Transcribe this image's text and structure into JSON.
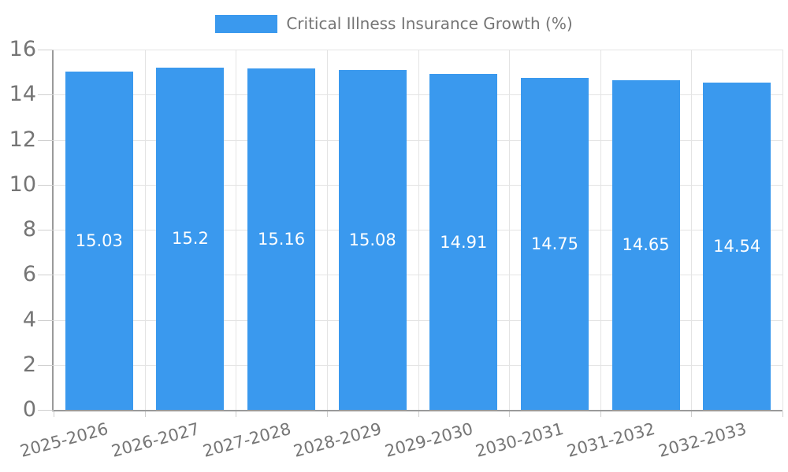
{
  "chart_data": {
    "type": "bar",
    "title": "Critical Illness Insurance Growth (%)",
    "legend": {
      "label": "Critical Illness Insurance Growth (%)",
      "position": "top"
    },
    "categories": [
      "2025-2026",
      "2026-2027",
      "2027-2028",
      "2028-2029",
      "2029-2030",
      "2030-2031",
      "2031-2032",
      "2032-2033"
    ],
    "values": [
      15.03,
      15.2,
      15.16,
      15.08,
      14.91,
      14.75,
      14.65,
      14.54
    ],
    "xlabel": "",
    "ylabel": "",
    "ylim": [
      0,
      16
    ],
    "yticks": [
      0,
      2,
      4,
      6,
      8,
      10,
      12,
      14,
      16
    ],
    "grid": true,
    "x_label_rotation_deg": -15,
    "colors": {
      "bar": "#3A99EE",
      "value_label": "#FFFFFF",
      "axis_label": "#757575",
      "legend_label": "#757575",
      "gridline": "#E4E4E4",
      "axis_line": "#9A9A9A",
      "background": "#FFFFFF"
    }
  }
}
